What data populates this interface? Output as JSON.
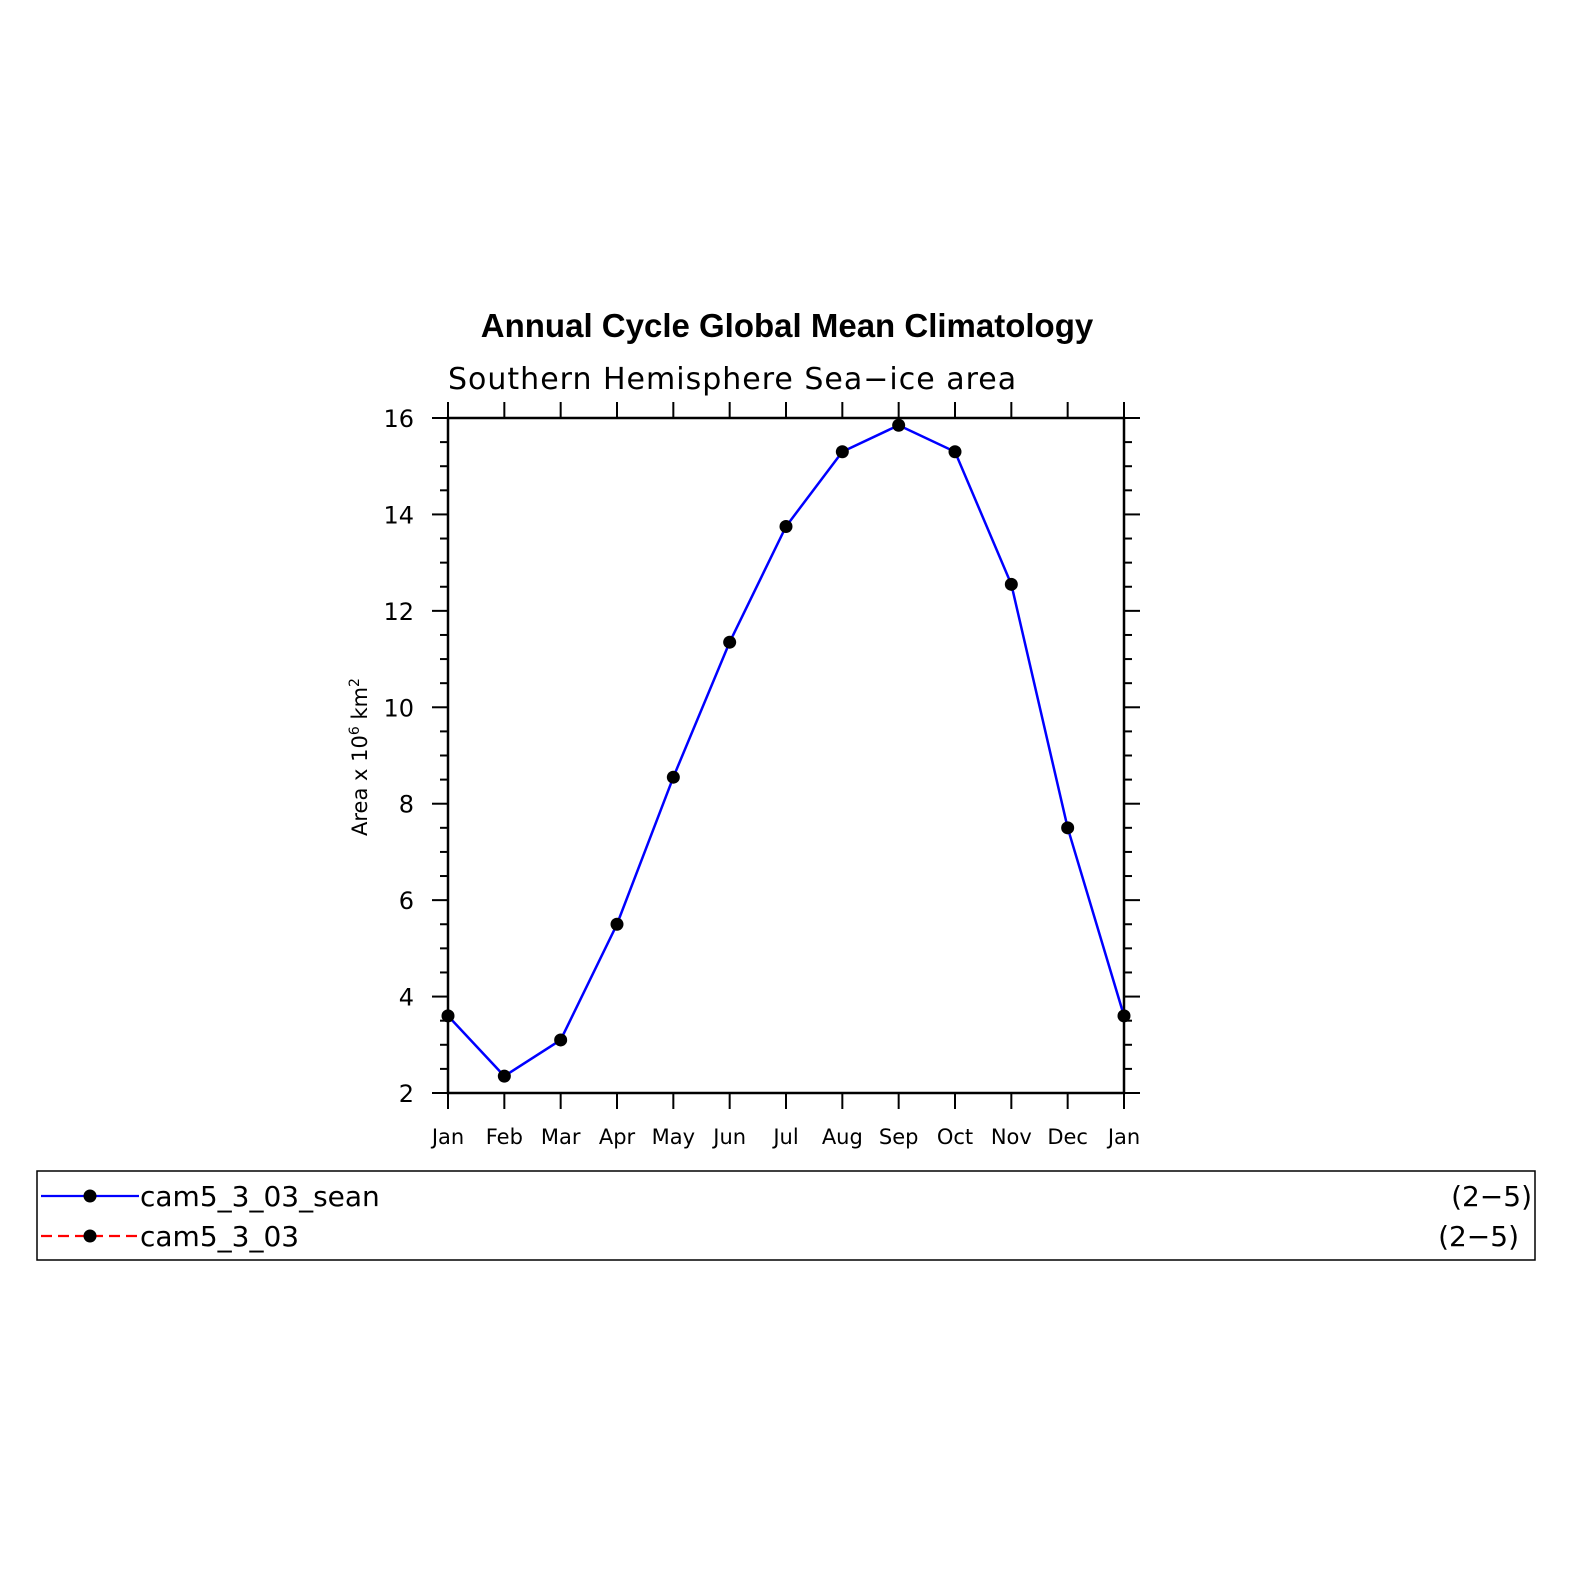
{
  "chart_data": {
    "type": "line",
    "title": "Annual Cycle Global Mean Climatology",
    "subtitle": "Southern Hemisphere Sea−ice area",
    "ylabel_parts": {
      "prefix": "Area x 10",
      "exp1": "6",
      "mid": " km",
      "exp2": "2"
    },
    "categories": [
      "Jan",
      "Feb",
      "Mar",
      "Apr",
      "May",
      "Jun",
      "Jul",
      "Aug",
      "Sep",
      "Oct",
      "Nov",
      "Dec",
      "Jan"
    ],
    "ylim": [
      2,
      16
    ],
    "yticks": [
      2,
      4,
      6,
      8,
      10,
      12,
      14,
      16
    ],
    "series": [
      {
        "name": "cam5_3_03_sean",
        "color": "#0000ff",
        "dashed": false,
        "values": [
          3.6,
          2.35,
          3.1,
          5.5,
          8.55,
          11.35,
          13.75,
          15.3,
          15.85,
          15.3,
          12.55,
          7.5,
          3.6
        ]
      }
    ],
    "legend": [
      {
        "label": "cam5_3_03_sean",
        "range": "(2−5)",
        "color": "#0000ff",
        "dashed": false
      },
      {
        "label": "cam5_3_03",
        "range": "(2−5)",
        "color": "#ff0000",
        "dashed": true
      }
    ],
    "grid": false
  }
}
